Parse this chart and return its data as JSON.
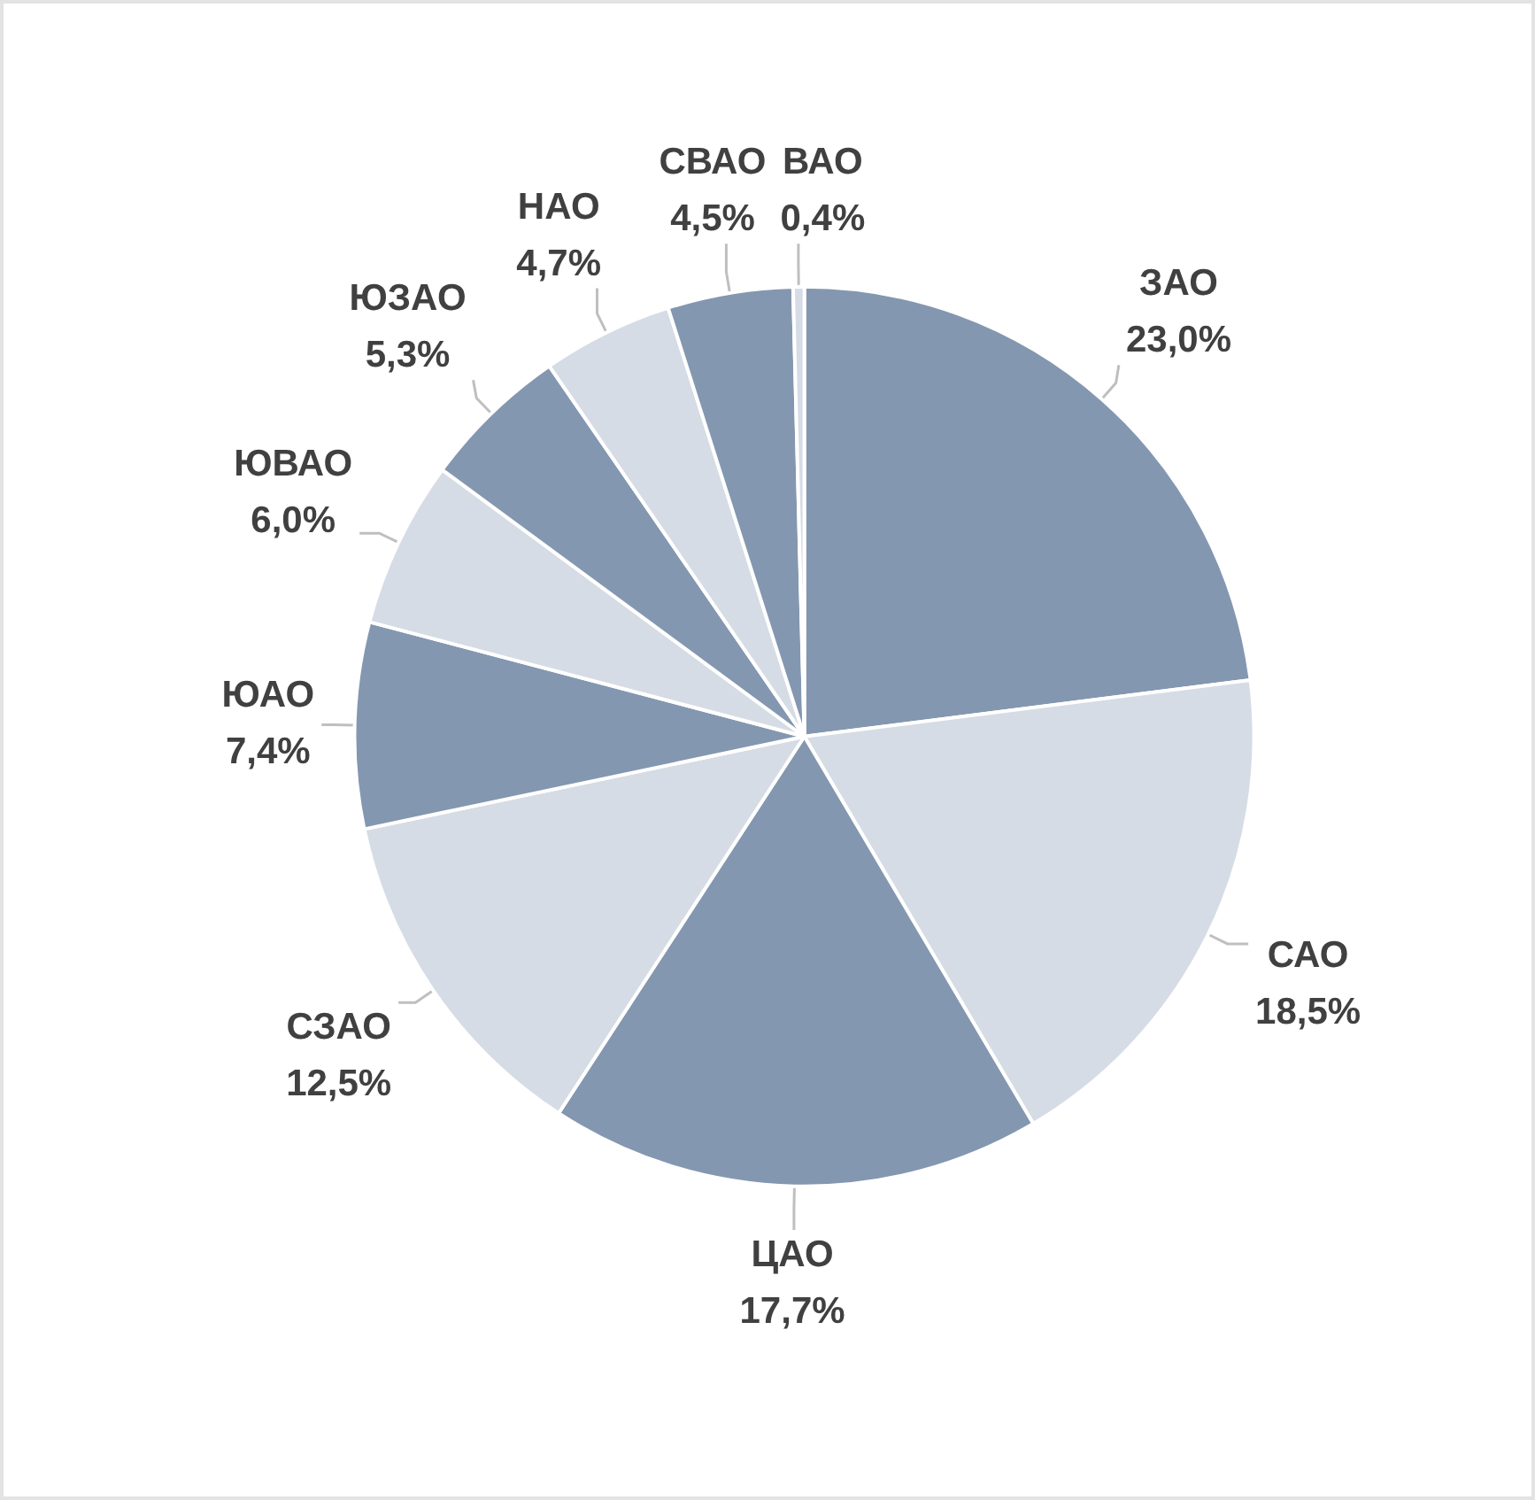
{
  "chart_data": {
    "type": "pie",
    "categories": [
      "ЗАО",
      "САО",
      "ЦАО",
      "СЗАО",
      "ЮАО",
      "ЮВАО",
      "ЮЗАО",
      "НАО",
      "СВАО",
      "ВАО"
    ],
    "values": [
      23.0,
      18.5,
      17.7,
      12.5,
      7.4,
      6.0,
      5.3,
      4.7,
      4.5,
      0.4
    ],
    "value_labels": [
      "23,0%",
      "18,5%",
      "17,7%",
      "12,5%",
      "7,4%",
      "6,0%",
      "5,3%",
      "4,7%",
      "4,5%",
      "0,4%"
    ],
    "colors": [
      "#8497b0",
      "#d6dce5",
      "#8497b0",
      "#d6dce5",
      "#8497b0",
      "#d6dce5",
      "#8497b0",
      "#d6dce5",
      "#8497b0",
      "#d6dce5"
    ]
  }
}
